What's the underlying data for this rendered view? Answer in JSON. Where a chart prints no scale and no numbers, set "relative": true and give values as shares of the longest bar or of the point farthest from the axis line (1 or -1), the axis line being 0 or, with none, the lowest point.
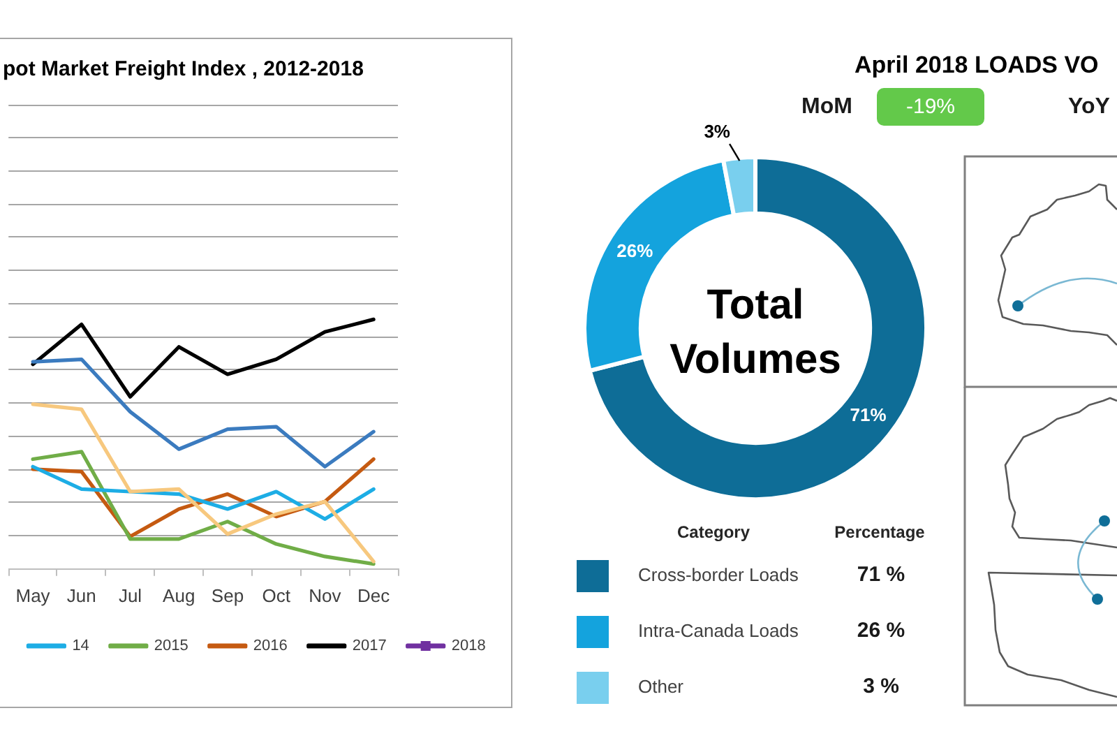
{
  "chart_data": [
    {
      "type": "line",
      "title": "pot Market Freight Index , 2012-2018",
      "categories": [
        "May",
        "Jun",
        "Jul",
        "Aug",
        "Sep",
        "Oct",
        "Nov",
        "Dec"
      ],
      "relative": true,
      "grid": "y",
      "legend": "bottom",
      "series": [
        {
          "color": "#3b7bbf",
          "values": [
            0.83,
            0.84,
            0.63,
            0.48,
            0.56,
            0.57,
            0.41,
            0.55
          ]
        },
        {
          "color": "#f7c87e",
          "values": [
            0.66,
            0.64,
            0.31,
            0.32,
            0.14,
            0.22,
            0.27,
            0.03
          ]
        },
        {
          "name": "14",
          "color": "#1dade5",
          "values": [
            0.41,
            0.32,
            0.31,
            0.3,
            0.24,
            0.31,
            0.2,
            0.32
          ]
        },
        {
          "name": "2015",
          "color": "#70ad47",
          "values": [
            0.44,
            0.47,
            0.12,
            0.12,
            0.19,
            0.1,
            0.05,
            0.02
          ]
        },
        {
          "name": "2016",
          "color": "#c55a11",
          "values": [
            0.4,
            0.39,
            0.13,
            0.24,
            0.3,
            0.21,
            0.27,
            0.44
          ]
        },
        {
          "name": "2017",
          "color": "#000000",
          "values": [
            0.82,
            0.98,
            0.69,
            0.89,
            0.78,
            0.84,
            0.95,
            1.0
          ]
        },
        {
          "name": "2018",
          "color": "#7030a0",
          "marker": "square",
          "values": [
            null,
            null,
            null,
            null,
            null,
            null,
            null,
            null
          ]
        }
      ]
    },
    {
      "type": "donut",
      "title": "April 2018 LOADS VO",
      "categories": [
        "Cross-border Loads",
        "Intra-Canada Loads",
        "Other"
      ],
      "values": [
        71,
        26,
        3
      ],
      "colors": [
        "#0e6d97",
        "#14a3dd",
        "#79cfee"
      ],
      "value_labels": [
        "71%",
        "26%",
        "3%"
      ],
      "legend": "bottom",
      "legend_title": "Category",
      "annotations": [
        "Total Volumes",
        "Percentage",
        "71 %",
        "26 %",
        "3 %",
        "MoM",
        "-19%",
        "YoY"
      ]
    }
  ]
}
